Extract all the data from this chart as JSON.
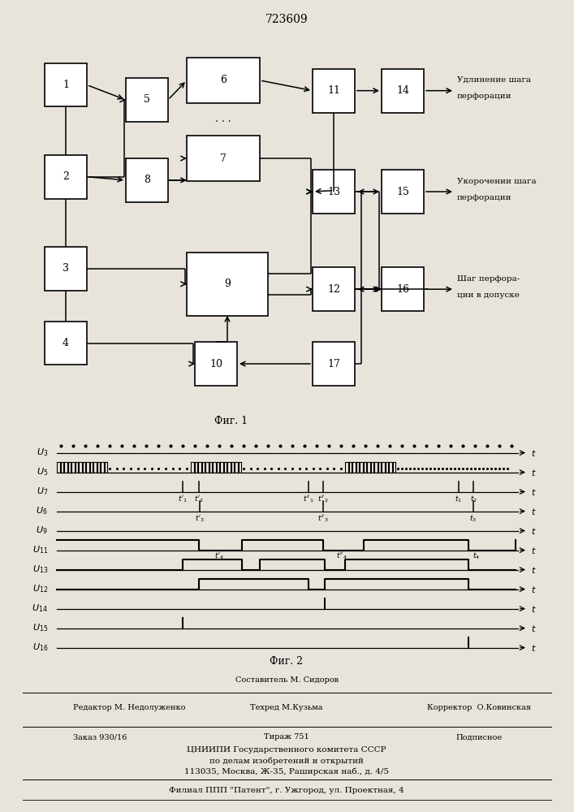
{
  "title": "723609",
  "fig1_caption": "Фиг. 1",
  "fig2_caption": "Фиг. 2",
  "bg_color": "#e8e4dc",
  "box_color": "#ffffff",
  "line_color": "#000000",
  "output_texts": [
    "Удлинение шага\nперфорации",
    "Укорочении шага\nперфорации",
    "Шаг перфора-\nции в допуске"
  ]
}
